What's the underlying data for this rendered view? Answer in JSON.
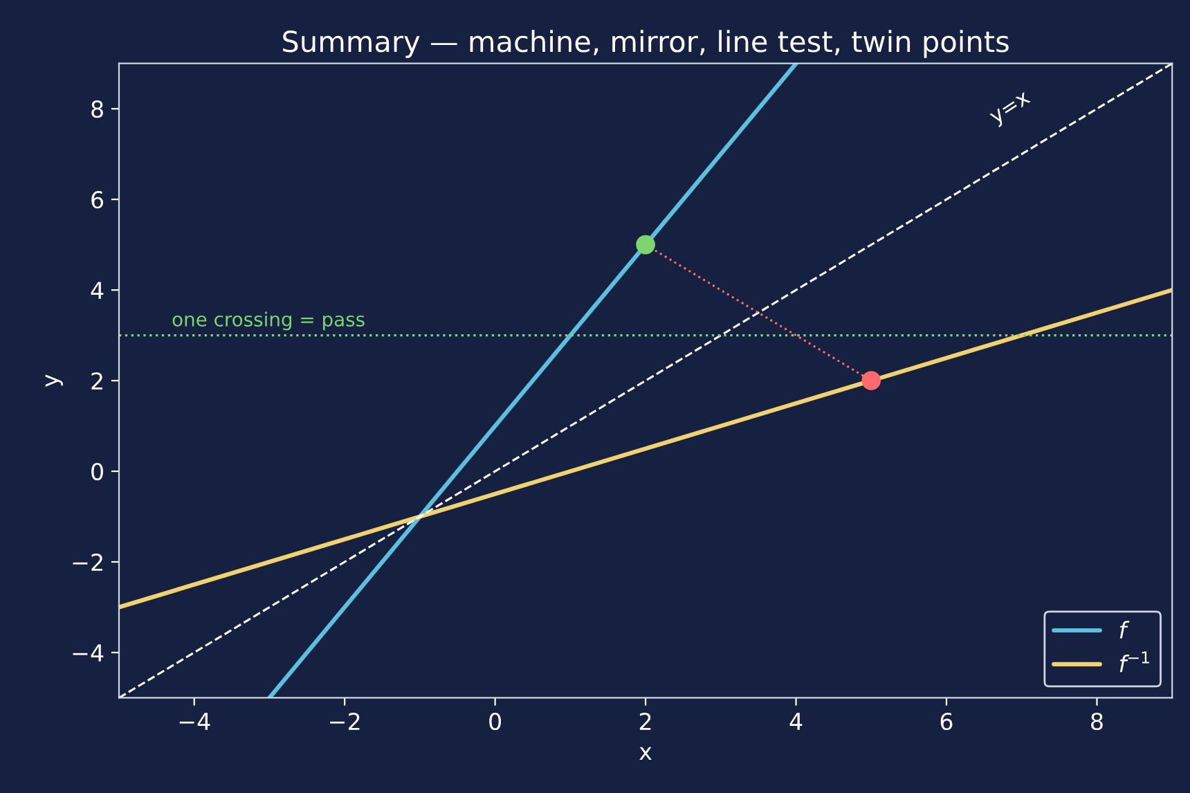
{
  "chart_data": {
    "type": "line",
    "title": "Summary — machine, mirror, line test, twin points",
    "xlabel": "x",
    "ylabel": "y",
    "xlim": [
      -5,
      9
    ],
    "ylim": [
      -5,
      9
    ],
    "xticks": [
      -4,
      -2,
      0,
      2,
      4,
      6,
      8
    ],
    "yticks": [
      -4,
      -2,
      0,
      2,
      4,
      6,
      8
    ],
    "grid": false,
    "legend": "bottom right",
    "series": [
      {
        "name": "f",
        "color": "#5bc0de",
        "x": [
          -3,
          4
        ],
        "values": [
          -5,
          9
        ],
        "line_style": "solid"
      },
      {
        "name": "f$^{−1}$",
        "color": "#f0d36e",
        "x": [
          -5,
          9
        ],
        "values": [
          -3,
          4
        ],
        "line_style": "solid"
      },
      {
        "color": "#ffffff",
        "x": [
          -5,
          9
        ],
        "values": [
          -5,
          9
        ],
        "line_style": "dashed"
      },
      {
        "color": "#ff6b6b",
        "x": [
          2,
          5
        ],
        "values": [
          5,
          2
        ],
        "line_style": "dotted"
      },
      {
        "type": "scatter",
        "color": "#7ed46f",
        "x": [
          2
        ],
        "values": [
          5
        ],
        "marker": "circle"
      },
      {
        "type": "scatter",
        "color": "#ff6b6b",
        "x": [
          5
        ],
        "values": [
          2
        ],
        "marker": "circle"
      }
    ],
    "ref_lines": [
      {
        "axis": "y",
        "value": 3,
        "label": "one crossing = pass",
        "color": "#7ed46f",
        "line_style": "dotted"
      }
    ],
    "annotations": [
      {
        "text": "y=x",
        "x": 7,
        "y": 7
      }
    ]
  }
}
